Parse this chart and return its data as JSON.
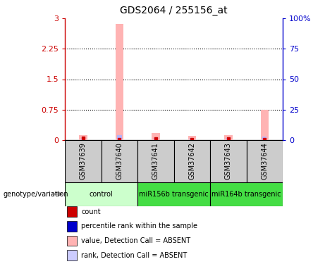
{
  "title": "GDS2064 / 255156_at",
  "samples": [
    "GSM37639",
    "GSM37640",
    "GSM37641",
    "GSM37642",
    "GSM37643",
    "GSM37644"
  ],
  "pink_values": [
    0.12,
    2.87,
    0.17,
    0.1,
    0.12,
    0.75
  ],
  "blue_values": [
    0.03,
    0.12,
    0.05,
    0.04,
    0.04,
    0.08
  ],
  "red_dot_values": [
    0.04,
    0.01,
    0.03,
    0.02,
    0.03,
    0.02
  ],
  "ylim_left": [
    0,
    3
  ],
  "ylim_right": [
    0,
    100
  ],
  "yticks_left": [
    0,
    0.75,
    1.5,
    2.25,
    3
  ],
  "yticks_right": [
    0,
    25,
    50,
    75,
    100
  ],
  "ytick_labels_left": [
    "0",
    "0.75",
    "1.5",
    "2.25",
    "3"
  ],
  "ytick_labels_right": [
    "0",
    "25",
    "50",
    "75",
    "100%"
  ],
  "grid_values": [
    0.75,
    1.5,
    2.25
  ],
  "left_axis_color": "#cc0000",
  "right_axis_color": "#0000cc",
  "bar_pink_color": "#ffb3b3",
  "bar_blue_color": "#b3b3ff",
  "dot_red_color": "#cc0000",
  "dot_blue_color": "#0000cc",
  "sample_box_color": "#cccccc",
  "group_info": [
    {
      "label": "control",
      "start": 0,
      "end": 1,
      "color": "#ccffcc"
    },
    {
      "label": "miR156b transgenic",
      "start": 2,
      "end": 3,
      "color": "#44dd44"
    },
    {
      "label": "miR164b transgenic",
      "start": 4,
      "end": 5,
      "color": "#44dd44"
    }
  ],
  "legend_items": [
    {
      "color": "#cc0000",
      "label": "count"
    },
    {
      "color": "#0000cc",
      "label": "percentile rank within the sample"
    },
    {
      "color": "#ffb3b3",
      "label": "value, Detection Call = ABSENT"
    },
    {
      "color": "#ccccff",
      "label": "rank, Detection Call = ABSENT"
    }
  ],
  "geno_label": "genotype/variation"
}
